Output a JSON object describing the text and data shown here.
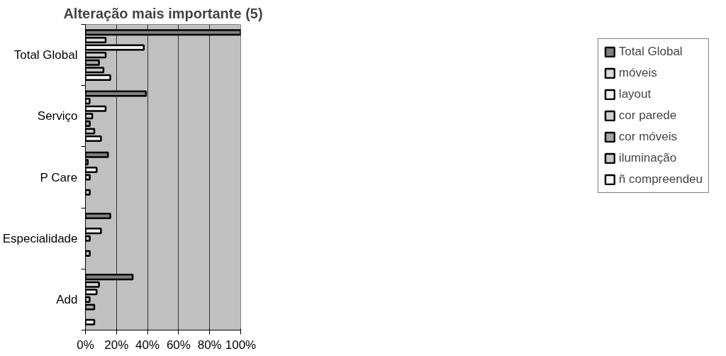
{
  "chart_data": {
    "type": "bar",
    "orientation": "horizontal",
    "title": "Alteração mais importante (5)",
    "categories": [
      "Total Global",
      "Serviço",
      "P Care",
      "Especialidade",
      "Add"
    ],
    "series": [
      {
        "name": "Total Global",
        "color": "#808080",
        "values": [
          100,
          39,
          14.5,
          16,
          30.4
        ]
      },
      {
        "name": "móveis",
        "color": "#dadada",
        "values": [
          13,
          2.7,
          1.5,
          null,
          8.7
        ]
      },
      {
        "name": "layout",
        "color": "#f2f2f2",
        "values": [
          37.6,
          13,
          7.2,
          10,
          7.2
        ]
      },
      {
        "name": "cor parede",
        "color": "#cfcfcf",
        "values": [
          13,
          4.4,
          2.8,
          2.8,
          2.7
        ]
      },
      {
        "name": "cor móveis",
        "color": "#a6a6a6",
        "values": [
          8.7,
          2.8,
          null,
          null,
          5.7
        ]
      },
      {
        "name": "iluminação",
        "color": "#c8c8c8",
        "values": [
          11.6,
          5.7,
          2.8,
          2.8,
          null
        ]
      },
      {
        "name": "ñ compreendeu",
        "color": "#f7f7f7",
        "values": [
          16,
          10,
          null,
          null,
          5.7
        ]
      }
    ],
    "xlim": [
      0,
      100
    ],
    "xticks": [
      {
        "value": 0,
        "label": "0%"
      },
      {
        "value": 20,
        "label": "20%"
      },
      {
        "value": 40,
        "label": "40%"
      },
      {
        "value": 60,
        "label": "60%"
      },
      {
        "value": 80,
        "label": "80%"
      },
      {
        "value": 100,
        "label": "100%"
      }
    ],
    "grid": "x",
    "legend": "right"
  }
}
